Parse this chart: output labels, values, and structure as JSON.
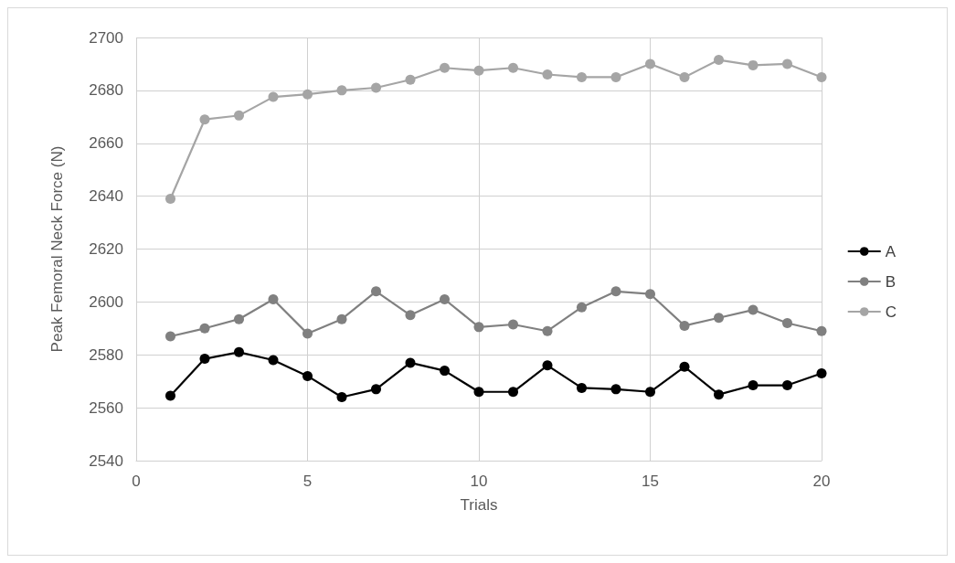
{
  "chart_data": {
    "type": "line",
    "xlabel": "Trials",
    "ylabel": "Peak Femoral Neck Force (N)",
    "x": [
      1,
      2,
      3,
      4,
      5,
      6,
      7,
      8,
      9,
      10,
      11,
      12,
      13,
      14,
      15,
      16,
      17,
      18,
      19,
      20
    ],
    "series": [
      {
        "name": "A",
        "color": "#000000",
        "values": [
          2564.5,
          2578.5,
          2581,
          2578,
          2572,
          2564,
          2567,
          2577,
          2574,
          2566,
          2566,
          2576,
          2567.5,
          2567,
          2566,
          2575.5,
          2565,
          2568.5,
          2568.5,
          2573
        ]
      },
      {
        "name": "B",
        "color": "#808080",
        "values": [
          2587,
          2590,
          2593.5,
          2601,
          2588,
          2593.5,
          2604,
          2595,
          2601,
          2590.5,
          2591.5,
          2589,
          2598,
          2604,
          2603,
          2591,
          2594,
          2597,
          2592,
          2589
        ]
      },
      {
        "name": "C",
        "color": "#a5a5a5",
        "values": [
          2639,
          2669,
          2670.5,
          2677.5,
          2678.5,
          2680,
          2681,
          2684,
          2688.5,
          2687.5,
          2688.5,
          2686,
          2685,
          2685,
          2690,
          2685,
          2691.5,
          2689.5,
          2690,
          2685
        ]
      }
    ],
    "xlim": [
      0,
      20
    ],
    "xticks": [
      0,
      5,
      10,
      15,
      20
    ],
    "ylim": [
      2540,
      2700
    ],
    "yticks": [
      2540,
      2560,
      2580,
      2600,
      2620,
      2640,
      2660,
      2680,
      2700
    ],
    "grid": true,
    "legend": "right",
    "marker": "circle",
    "line_style": "solid"
  }
}
